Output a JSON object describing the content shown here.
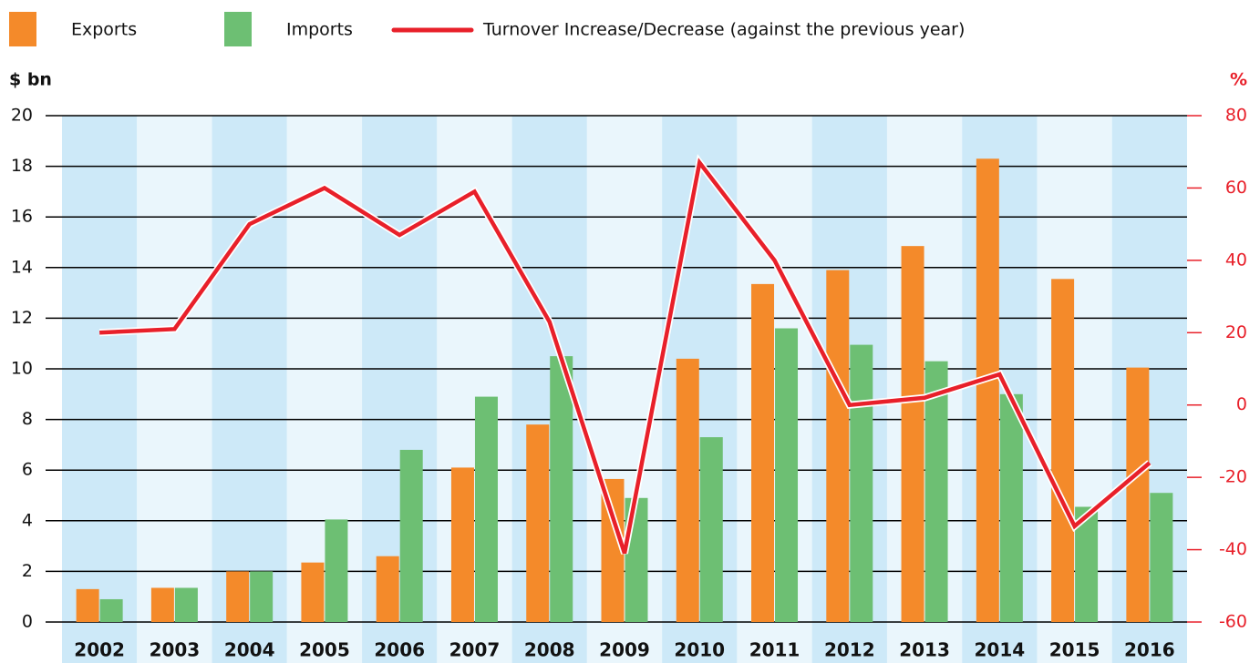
{
  "chart_data": {
    "type": "bar_line",
    "y_label": "$ bn",
    "y2_label": "%",
    "categories": [
      "2002",
      "2003",
      "2004",
      "2005",
      "2006",
      "2007",
      "2008",
      "2009",
      "2010",
      "2011",
      "2012",
      "2013",
      "2014",
      "2015",
      "2016"
    ],
    "series": [
      {
        "name": "Exports",
        "color": "#f48a2a",
        "type": "bar",
        "values": [
          1.3,
          1.35,
          2.0,
          2.35,
          2.6,
          6.1,
          7.8,
          5.65,
          10.4,
          13.35,
          13.9,
          14.85,
          18.3,
          13.55,
          10.05
        ]
      },
      {
        "name": "Imports",
        "color": "#6dbf73",
        "type": "bar",
        "values": [
          0.9,
          1.35,
          2.0,
          4.05,
          6.8,
          8.9,
          10.5,
          4.9,
          7.3,
          11.6,
          10.95,
          10.3,
          9.0,
          4.55,
          5.1
        ]
      },
      {
        "name": "Turnover Increase/Decrease (against the previous year)",
        "color": "#e8202a",
        "type": "line",
        "axis": "y2",
        "values": [
          20,
          21,
          50,
          60,
          47,
          59,
          23,
          -41,
          67,
          40,
          0,
          2,
          8.5,
          -33.5,
          -16
        ]
      }
    ],
    "ylim": [
      0,
      20
    ],
    "yticks": [
      0,
      2,
      4,
      6,
      8,
      10,
      12,
      14,
      16,
      18,
      20
    ],
    "y2lim": [
      -60,
      80
    ],
    "y2ticks": [
      -60,
      -40,
      -20,
      0,
      20,
      40,
      60,
      80
    ],
    "grid": true,
    "band_colors": [
      "#cde9f8",
      "#eaf6fc"
    ],
    "legend": "top"
  }
}
